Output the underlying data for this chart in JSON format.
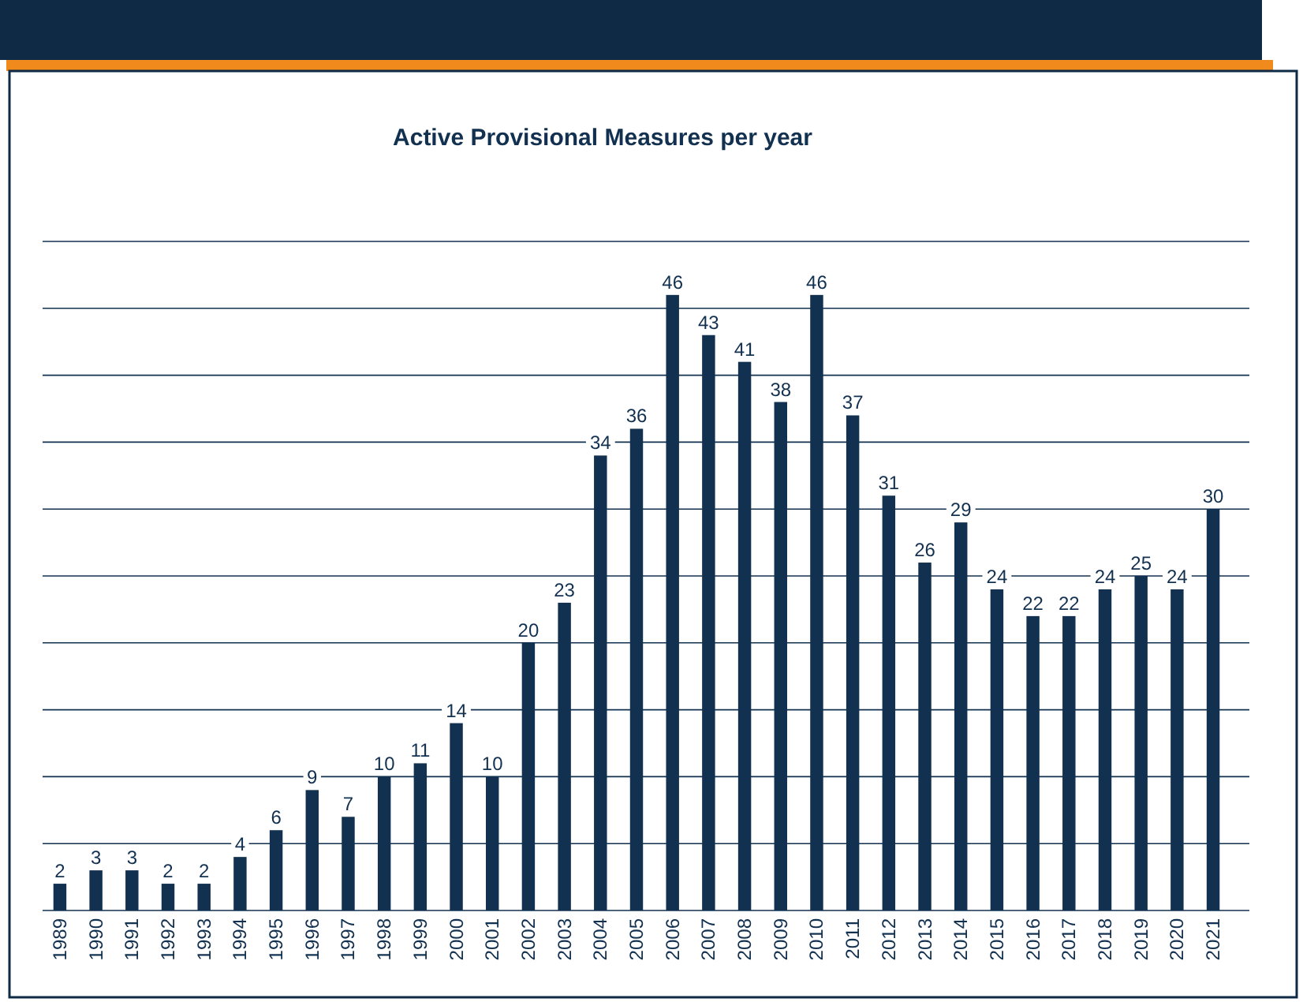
{
  "chart_data": {
    "type": "bar",
    "title": "Active Provisional Measures per year",
    "categories": [
      "1989",
      "1990",
      "1991",
      "1992",
      "1993",
      "1994",
      "1995",
      "1996",
      "1997",
      "1998",
      "1999",
      "2000",
      "2001",
      "2002",
      "2003",
      "2004",
      "2005",
      "2006",
      "2007",
      "2008",
      "2009",
      "2010",
      "2011",
      "2012",
      "2013",
      "2014",
      "2015",
      "2016",
      "2017",
      "2018",
      "2019",
      "2020",
      "2021"
    ],
    "values": [
      2,
      3,
      3,
      2,
      2,
      4,
      6,
      9,
      7,
      10,
      11,
      14,
      10,
      20,
      23,
      34,
      36,
      46,
      43,
      41,
      38,
      46,
      37,
      31,
      26,
      29,
      24,
      22,
      22,
      24,
      25,
      24,
      30
    ],
    "color": "#12304f",
    "data_labels": true,
    "ylim": [
      0,
      50
    ],
    "yticks": [
      {
        "value": 0,
        "label": null
      },
      {
        "value": 5,
        "label": null
      },
      {
        "value": 10,
        "label": null
      },
      {
        "value": 15,
        "label": null
      },
      {
        "value": 20,
        "label": null
      },
      {
        "value": 25,
        "label": null
      },
      {
        "value": 30,
        "label": null
      },
      {
        "value": 35,
        "label": null
      },
      {
        "value": 40,
        "label": null
      },
      {
        "value": 45,
        "label": null
      },
      {
        "value": 50,
        "label": null
      }
    ],
    "grid": "y",
    "tick_labels": "x"
  }
}
